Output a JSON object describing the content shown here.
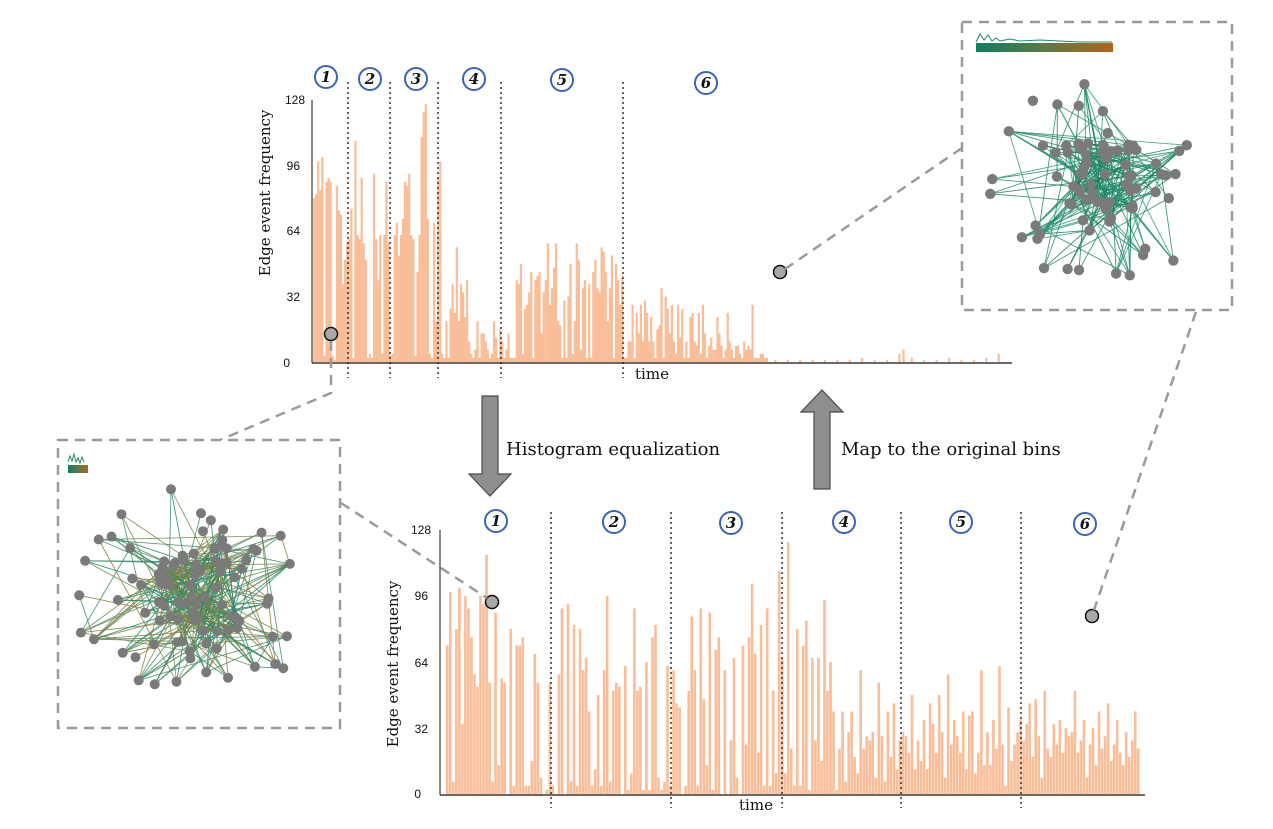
{
  "figure": {
    "arrow_down_label": "Histogram equalization",
    "arrow_up_label": "Map to the original bins"
  },
  "top_chart": {
    "ylabel": "Edge event frequency",
    "xlabel": "time",
    "ticks": [
      "0",
      "32",
      "64",
      "96",
      "128"
    ],
    "segment_labels": [
      "1",
      "2",
      "3",
      "4",
      "5",
      "6"
    ]
  },
  "bottom_chart": {
    "ylabel": "Edge event frequency",
    "xlabel": "time",
    "ticks": [
      "0",
      "32",
      "64",
      "96",
      "128"
    ],
    "segment_labels": [
      "1",
      "2",
      "3",
      "4",
      "5",
      "6"
    ]
  },
  "colors": {
    "bar": "#f9bd97",
    "badge_stroke": "#3a62b8",
    "node": "#7a7a7a",
    "edge_green": "#1f8a6a",
    "edge_olive": "#8a7a3a",
    "arrow": "#8e8e8e",
    "dashed": "#9a9a9a"
  },
  "chart_data": [
    {
      "type": "bar",
      "title": "",
      "xlabel": "time",
      "ylabel": "Edge event frequency",
      "ylim": [
        0,
        128
      ],
      "segments": 6,
      "segment_boundaries_fraction": [
        0.06,
        0.125,
        0.195,
        0.285,
        0.455
      ],
      "values": [
        80,
        82,
        98,
        84,
        100,
        3,
        88,
        90,
        88,
        3,
        1,
        86,
        74,
        72,
        38,
        50,
        58,
        60,
        75,
        2,
        108,
        62,
        60,
        90,
        58,
        50,
        2,
        4,
        2,
        92,
        60,
        40,
        62,
        4,
        62,
        88,
        58,
        3,
        4,
        62,
        68,
        52,
        62,
        70,
        88,
        86,
        92,
        62,
        60,
        3,
        44,
        62,
        110,
        122,
        126,
        70,
        4,
        2,
        68,
        20,
        90,
        98,
        4,
        2,
        20,
        2,
        26,
        38,
        24,
        56,
        20,
        38,
        34,
        22,
        40,
        10,
        4,
        2,
        6,
        20,
        2,
        14,
        14,
        10,
        6,
        2,
        4,
        20,
        12,
        2,
        16,
        10,
        2,
        6,
        14,
        2,
        2,
        2,
        40,
        38,
        48,
        4,
        26,
        28,
        34,
        44,
        2,
        40,
        42,
        44,
        14,
        34,
        40,
        58,
        28,
        36,
        46,
        58,
        20,
        18,
        2,
        30,
        2,
        32,
        48,
        4,
        20,
        58,
        50,
        6,
        36,
        40,
        2,
        38,
        2,
        44,
        50,
        36,
        34,
        56,
        54,
        44,
        20,
        36,
        52,
        2,
        48,
        40,
        28,
        42,
        2,
        2,
        10,
        10,
        28,
        2,
        24,
        14,
        28,
        10,
        30,
        24,
        10,
        22,
        10,
        2,
        16,
        18,
        36,
        2,
        32,
        26,
        14,
        28,
        10,
        4,
        28,
        12,
        26,
        2,
        10,
        2,
        22,
        24,
        10,
        8,
        24,
        4,
        28,
        14,
        2,
        8,
        12,
        6,
        6,
        22,
        14,
        8,
        2,
        6,
        24,
        10,
        6,
        2,
        8,
        8,
        4,
        2,
        10,
        6,
        8,
        6,
        28,
        2,
        2,
        2,
        4,
        4,
        2,
        2,
        0,
        0,
        0,
        1,
        0,
        0,
        0,
        0,
        0,
        1,
        0,
        0,
        0,
        0,
        0,
        1,
        0,
        0,
        0,
        0,
        0,
        1,
        0,
        0,
        0,
        0,
        0,
        1,
        0,
        0,
        0,
        0,
        0,
        1,
        0,
        0,
        0,
        0,
        0,
        1,
        0,
        0,
        0,
        0,
        0,
        2,
        0,
        0,
        0,
        0,
        0,
        1,
        0,
        0,
        0,
        0,
        0,
        1,
        0,
        0,
        0,
        0,
        0,
        4,
        0,
        6,
        0,
        0,
        0,
        2,
        0,
        0,
        0,
        0,
        0,
        1,
        0,
        0,
        0,
        0,
        0,
        1,
        0,
        0,
        0,
        0,
        0,
        2,
        0,
        0,
        0,
        0,
        0,
        1,
        0,
        0,
        0,
        0,
        0,
        1,
        0,
        0,
        0,
        0,
        0,
        2,
        0,
        0,
        0,
        0,
        0,
        4,
        0,
        0,
        0,
        0,
        0
      ]
    },
    {
      "type": "bar",
      "title": "",
      "xlabel": "time",
      "ylabel": "Edge event frequency",
      "ylim": [
        0,
        128
      ],
      "segments": 6,
      "segment_boundaries_fraction": [
        0.17,
        0.34,
        0.5,
        0.67,
        0.84
      ],
      "values": [
        72,
        98,
        6,
        80,
        100,
        34,
        96,
        90,
        76,
        58,
        52,
        96,
        92,
        116,
        54,
        6,
        88,
        14,
        56,
        54,
        0,
        80,
        4,
        72,
        72,
        76,
        4,
        4,
        16,
        68,
        54,
        8,
        0,
        2,
        54,
        4,
        0,
        58,
        90,
        0,
        92,
        6,
        82,
        4,
        80,
        60,
        66,
        40,
        4,
        12,
        48,
        4,
        60,
        96,
        6,
        50,
        54,
        52,
        0,
        62,
        2,
        10,
        90,
        50,
        52,
        2,
        64,
        2,
        76,
        82,
        8,
        2,
        6,
        62,
        4,
        60,
        44,
        42,
        0,
        4,
        50,
        86,
        60,
        4,
        90,
        46,
        14,
        88,
        2,
        70,
        76,
        0,
        60,
        0,
        26,
        66,
        8,
        0,
        72,
        24,
        76,
        102,
        68,
        20,
        82,
        4,
        90,
        4,
        50,
        10,
        108,
        66,
        10,
        122,
        22,
        4,
        80,
        4,
        72,
        84,
        2,
        66,
        26,
        66,
        16,
        94,
        50,
        64,
        40,
        2,
        22,
        40,
        6,
        30,
        40,
        18,
        10,
        60,
        22,
        28,
        26,
        30,
        8,
        54,
        28,
        6,
        40,
        18,
        44,
        12,
        26,
        30,
        28,
        20,
        48,
        12,
        26,
        16,
        36,
        12,
        44,
        34,
        20,
        48,
        30,
        8,
        58,
        24,
        36,
        28,
        20,
        40,
        12,
        38,
        40,
        10,
        20,
        60,
        14,
        30,
        14,
        36,
        22,
        62,
        24,
        4,
        42,
        16,
        24,
        30,
        36,
        26,
        34,
        44,
        18,
        46,
        28,
        8,
        50,
        22,
        18,
        34,
        24,
        36,
        20,
        32,
        28,
        30,
        50,
        20,
        26,
        36,
        8,
        24,
        32,
        14,
        40,
        22,
        28,
        44,
        16,
        24,
        36,
        20,
        14,
        30,
        18,
        26,
        40,
        22
      ]
    }
  ]
}
